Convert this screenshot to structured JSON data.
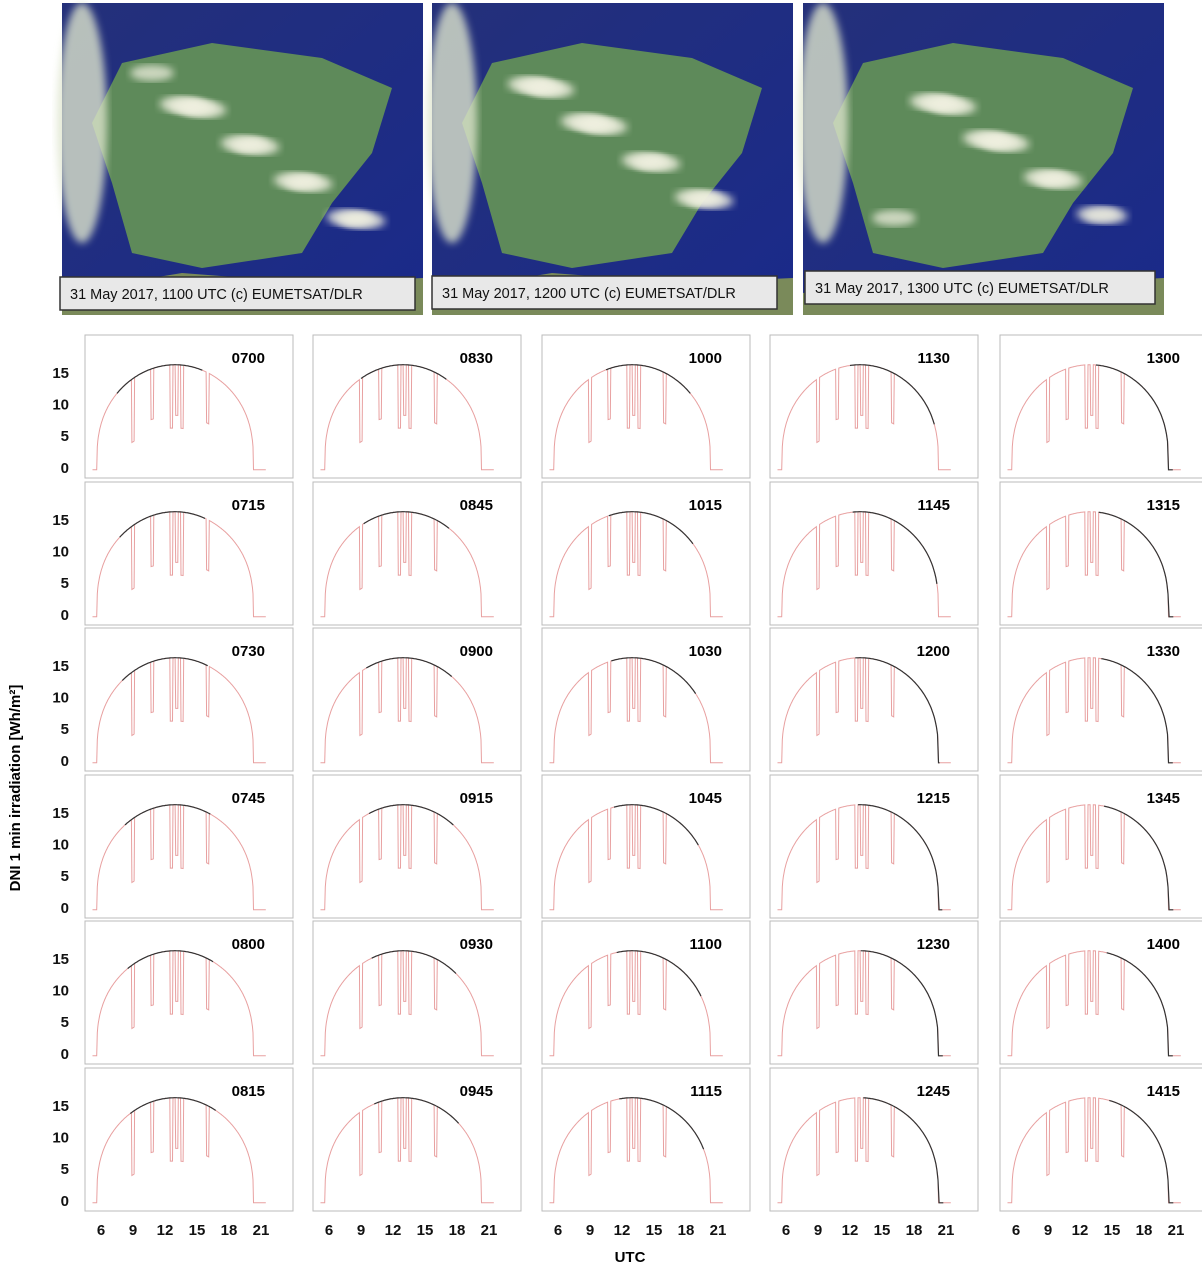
{
  "captions": [
    "31 May 2017, 1100 UTC  (c) EUMETSAT/DLR",
    "31 May 2017, 1200 UTC  (c) EUMETSAT/DLR",
    "31 May 2017, 1300 UTC  (c) EUMETSAT/DLR"
  ],
  "panels": [
    "0700",
    "0715",
    "0730",
    "0745",
    "0800",
    "0815",
    "0830",
    "0845",
    "0900",
    "0915",
    "0930",
    "0945",
    "1000",
    "1015",
    "1030",
    "1045",
    "1100",
    "1115",
    "1130",
    "1145",
    "1200",
    "1215",
    "1230",
    "1245",
    "1300",
    "1315",
    "1330",
    "1345",
    "1400",
    "1415"
  ],
  "y_label": "DNI 1 min irradiation [Wh/m²]",
  "x_label": "UTC",
  "xlim": [
    4.5,
    24
  ],
  "ylim": [
    -1.6,
    21
  ],
  "xticks": [
    6,
    9,
    12,
    15,
    18,
    21
  ],
  "yticks": [
    0,
    5,
    10,
    15
  ]
}
